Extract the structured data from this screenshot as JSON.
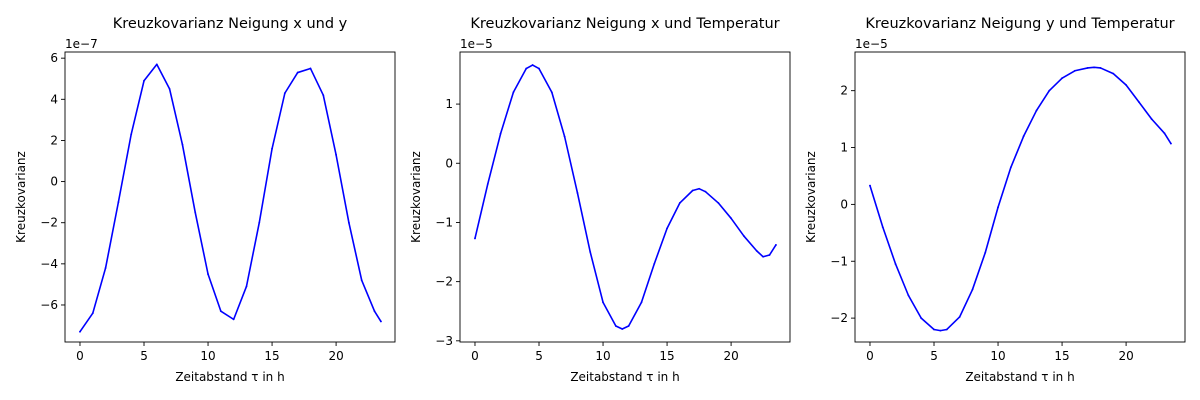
{
  "chart_data": [
    {
      "type": "line",
      "title": "Kreuzkovarianz Neigung x und y",
      "xlabel": "Zeitabstand τ in h",
      "ylabel": "Kreuzkovarianz",
      "offset_label": "1e−7",
      "scale": 1e-07,
      "xlim": [
        -1.17,
        24.6
      ],
      "ylim": [
        -7.8,
        6.3
      ],
      "xticks": [
        0,
        5,
        10,
        15,
        20
      ],
      "yticks": [
        -6,
        -4,
        -2,
        0,
        2,
        4,
        6
      ],
      "color": "#0000ff",
      "series": [
        {
          "x": [
            0,
            1,
            2,
            3,
            4,
            5,
            6,
            7,
            8,
            9,
            10,
            11,
            12,
            13,
            14,
            15,
            16,
            17,
            18,
            19,
            20,
            21,
            22,
            23,
            23.5
          ],
          "y": [
            -7.3,
            -6.4,
            -4.2,
            -1.0,
            2.3,
            4.9,
            5.7,
            4.5,
            1.8,
            -1.5,
            -4.5,
            -6.3,
            -6.7,
            -5.1,
            -2.0,
            1.6,
            4.3,
            5.3,
            5.5,
            4.2,
            1.3,
            -2.0,
            -4.8,
            -6.3,
            -6.8
          ]
        }
      ]
    },
    {
      "type": "line",
      "title": "Kreuzkovarianz Neigung x und Temperatur",
      "xlabel": "Zeitabstand τ in h",
      "ylabel": "Kreuzkovarianz",
      "offset_label": "1e−5",
      "scale": 1e-05,
      "xlim": [
        -1.17,
        24.6
      ],
      "ylim": [
        -3.02,
        1.88
      ],
      "xticks": [
        0,
        5,
        10,
        15,
        20
      ],
      "yticks": [
        -3,
        -2,
        -1,
        0,
        1
      ],
      "color": "#0000ff",
      "series": [
        {
          "x": [
            0,
            1,
            2,
            3,
            4,
            4.5,
            5,
            6,
            7,
            8,
            9,
            10,
            11,
            11.5,
            12,
            13,
            14,
            15,
            16,
            17,
            17.5,
            18,
            19,
            20,
            21,
            22,
            22.5,
            23,
            23.5
          ],
          "y": [
            -1.27,
            -0.35,
            0.5,
            1.2,
            1.6,
            1.66,
            1.6,
            1.2,
            0.45,
            -0.5,
            -1.5,
            -2.35,
            -2.75,
            -2.8,
            -2.75,
            -2.35,
            -1.7,
            -1.1,
            -0.67,
            -0.46,
            -0.43,
            -0.48,
            -0.67,
            -0.93,
            -1.23,
            -1.48,
            -1.58,
            -1.55,
            -1.38
          ]
        }
      ]
    },
    {
      "type": "line",
      "title": "Kreuzkovarianz Neigung y und Temperatur",
      "xlabel": "Zeitabstand τ in h",
      "ylabel": "Kreuzkovarianz",
      "offset_label": "1e−5",
      "scale": 1e-05,
      "xlim": [
        -1.17,
        24.6
      ],
      "ylim": [
        -2.42,
        2.68
      ],
      "xticks": [
        0,
        5,
        10,
        15,
        20
      ],
      "yticks": [
        -2,
        -1,
        0,
        1,
        2
      ],
      "color": "#0000ff",
      "series": [
        {
          "x": [
            0,
            1,
            2,
            3,
            4,
            5,
            5.5,
            6,
            7,
            8,
            9,
            10,
            11,
            12,
            13,
            14,
            15,
            16,
            17,
            17.5,
            18,
            19,
            20,
            21,
            22,
            23,
            23.5
          ],
          "y": [
            0.33,
            -0.4,
            -1.05,
            -1.6,
            -2.0,
            -2.2,
            -2.22,
            -2.2,
            -1.98,
            -1.5,
            -0.85,
            -0.05,
            0.65,
            1.2,
            1.65,
            2.0,
            2.22,
            2.35,
            2.4,
            2.41,
            2.4,
            2.3,
            2.1,
            1.8,
            1.5,
            1.25,
            1.07
          ]
        }
      ]
    }
  ]
}
